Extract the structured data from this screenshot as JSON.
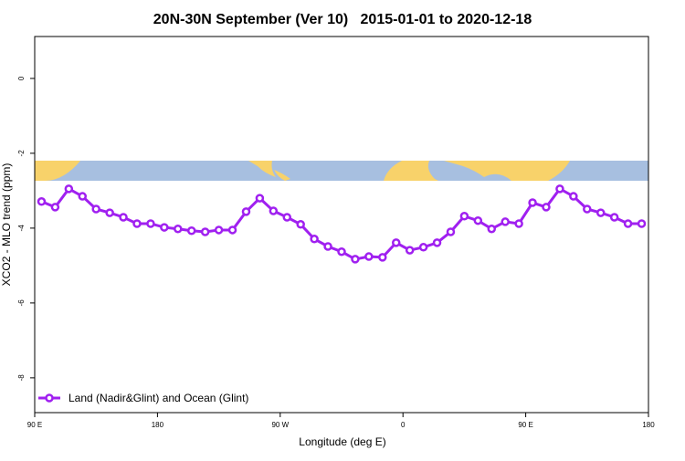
{
  "chart_data": {
    "type": "line",
    "title": "20N-30N September (Ver 10)   2015-01-01 to 2020-12-18",
    "x_label": "Longitude (deg E)",
    "y_label": "XCO2 - MLO trend (ppm)",
    "x": [
      95,
      105,
      115,
      125,
      135,
      145,
      155,
      165,
      175,
      185,
      195,
      205,
      215,
      225,
      235,
      245,
      255,
      265,
      275,
      285,
      295,
      305,
      315,
      325,
      335,
      345,
      355,
      365,
      375,
      385,
      395,
      405,
      415,
      425,
      435,
      445,
      455,
      465,
      475,
      485,
      495,
      505,
      515,
      525,
      535
    ],
    "series": [
      {
        "name": "Land (Nadir&Glint) and Ocean (Glint)",
        "color": "#a020f0",
        "values": [
          -3.29,
          -3.44,
          -2.95,
          -3.15,
          -3.49,
          -3.59,
          -3.71,
          -3.88,
          -3.88,
          -3.98,
          -4.02,
          -4.07,
          -4.1,
          -4.05,
          -4.05,
          -3.56,
          -3.2,
          -3.54,
          -3.71,
          -3.9,
          -4.29,
          -4.49,
          -4.63,
          -4.83,
          -4.76,
          -4.78,
          -4.39,
          -4.59,
          -4.51,
          -4.39,
          -4.1,
          -3.68,
          -3.8,
          -4.02,
          -3.83,
          -3.88,
          -3.32,
          -3.44,
          -2.95,
          -3.15,
          -3.49,
          -3.59,
          -3.71,
          -3.88,
          -3.88
        ]
      }
    ],
    "xlim": [
      90,
      540
    ],
    "xticks": [
      {
        "value": 90,
        "label": "90 E"
      },
      {
        "value": 180,
        "label": "180"
      },
      {
        "value": 270,
        "label": "90 W"
      },
      {
        "value": 360,
        "label": "0"
      },
      {
        "value": 450,
        "label": "90 E"
      },
      {
        "value": 540,
        "label": "180"
      }
    ],
    "ylim": [
      -8.93,
      1.12
    ],
    "yticks": [
      0,
      -2,
      -4,
      -6,
      -8
    ],
    "legend": "bottomleft"
  }
}
